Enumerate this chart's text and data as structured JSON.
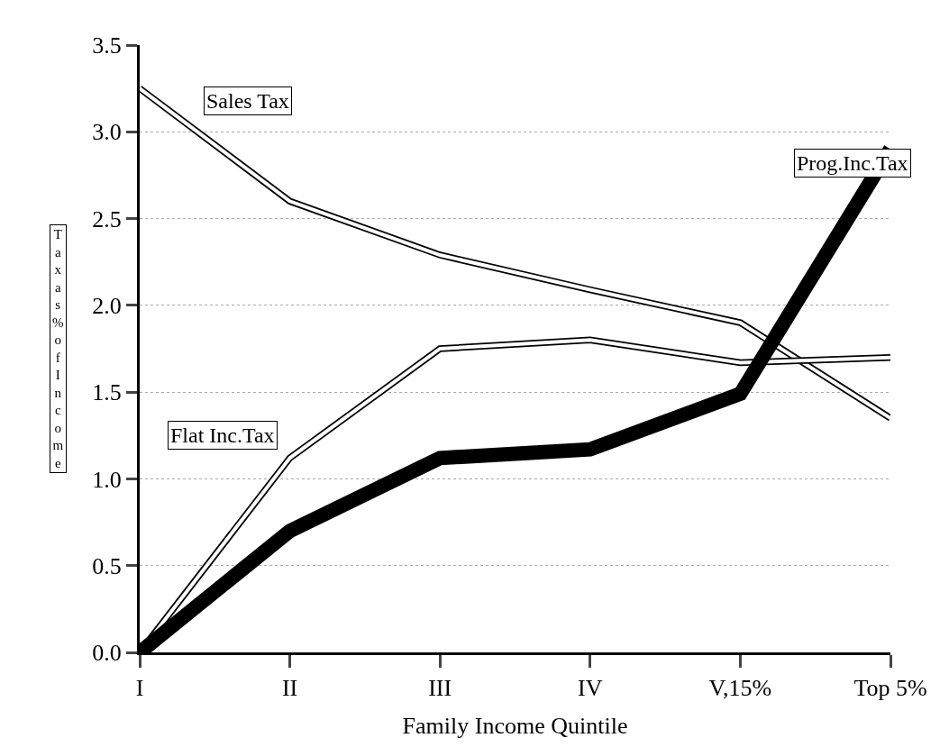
{
  "chart_data": {
    "type": "line",
    "xlabel": "Family Income Quintile",
    "ylabel": "Tax as % of Income",
    "categories": [
      "I",
      "II",
      "III",
      "IV",
      "V,15%",
      "Top 5%"
    ],
    "ylim": [
      0,
      3.5
    ],
    "yticks": [
      {
        "value": 0,
        "label": "0.0"
      },
      0.5,
      {
        "value": 1,
        "label": "1.0"
      },
      1.5,
      {
        "value": 2,
        "label": "2.0"
      },
      2.5,
      {
        "value": 3,
        "label": "3.0"
      },
      3.5
    ],
    "grid": "y",
    "legend": false,
    "marker": "none",
    "series": [
      {
        "name": "Sales Tax",
        "color": "#000000",
        "values": [
          3.25,
          2.6,
          2.29,
          2.09,
          1.9,
          1.35
        ]
      },
      {
        "name": "Flat Inc.Tax",
        "color": "#000000",
        "values": [
          0,
          1.12,
          1.75,
          1.8,
          1.67,
          1.7
        ]
      },
      {
        "name": "Prog.Inc.Tax",
        "color": "#000000",
        "values": [
          0,
          0.7,
          1.12,
          1.17,
          1.49,
          2.9
        ]
      }
    ]
  }
}
